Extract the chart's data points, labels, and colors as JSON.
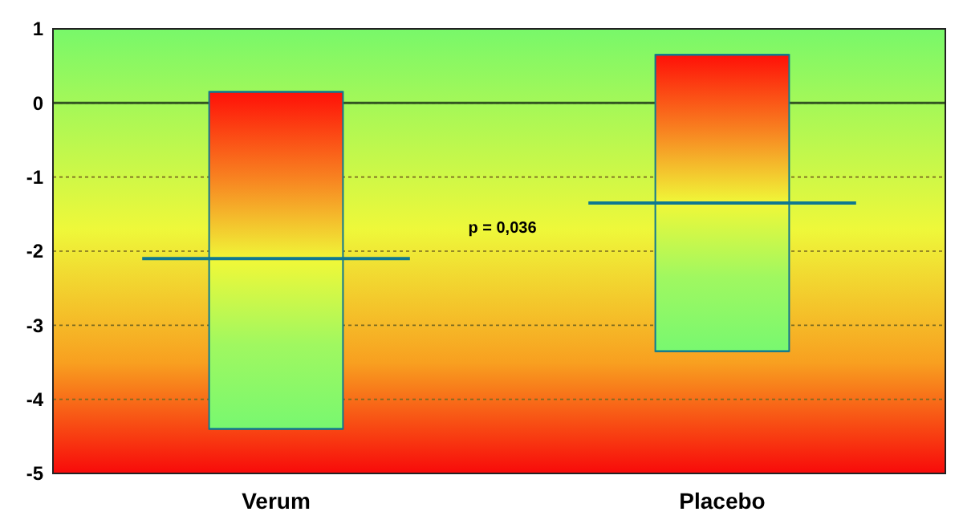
{
  "chart_data": {
    "type": "box",
    "categories": [
      "Verum",
      "Placebo"
    ],
    "series": [
      {
        "color": "#0f7890",
        "boxes": [
          {
            "low": -4.4,
            "q1": -4.4,
            "median": -2.1,
            "q3": 0.15,
            "high": 0.15
          },
          {
            "low": -3.35,
            "q1": -3.35,
            "median": -1.35,
            "q3": 0.65,
            "high": 0.65
          }
        ]
      }
    ],
    "ylim": [
      -5,
      1
    ],
    "yticks": [
      -5,
      -4,
      -3,
      -2,
      -1,
      0,
      1
    ],
    "grid": "y",
    "ref_lines": [
      {
        "axis": "y",
        "value": 0
      }
    ],
    "annotations": [
      {
        "text": "p = 0,036"
      }
    ]
  }
}
